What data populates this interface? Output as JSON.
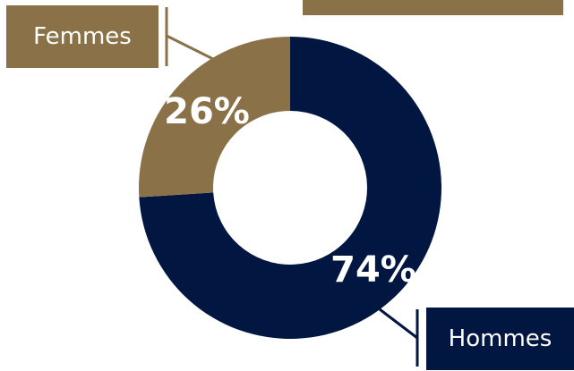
{
  "chart_data": {
    "type": "pie",
    "style": "donut",
    "title": "",
    "slices": [
      {
        "name": "Hommes",
        "value": 74,
        "label": "74%",
        "color": "#021642"
      },
      {
        "name": "Femmes",
        "value": 26,
        "label": "26%",
        "color": "#8a7148"
      }
    ],
    "legend": [
      {
        "label": "Femmes",
        "color": "#8a7148"
      },
      {
        "label": "Hommes",
        "color": "#021642"
      }
    ]
  }
}
